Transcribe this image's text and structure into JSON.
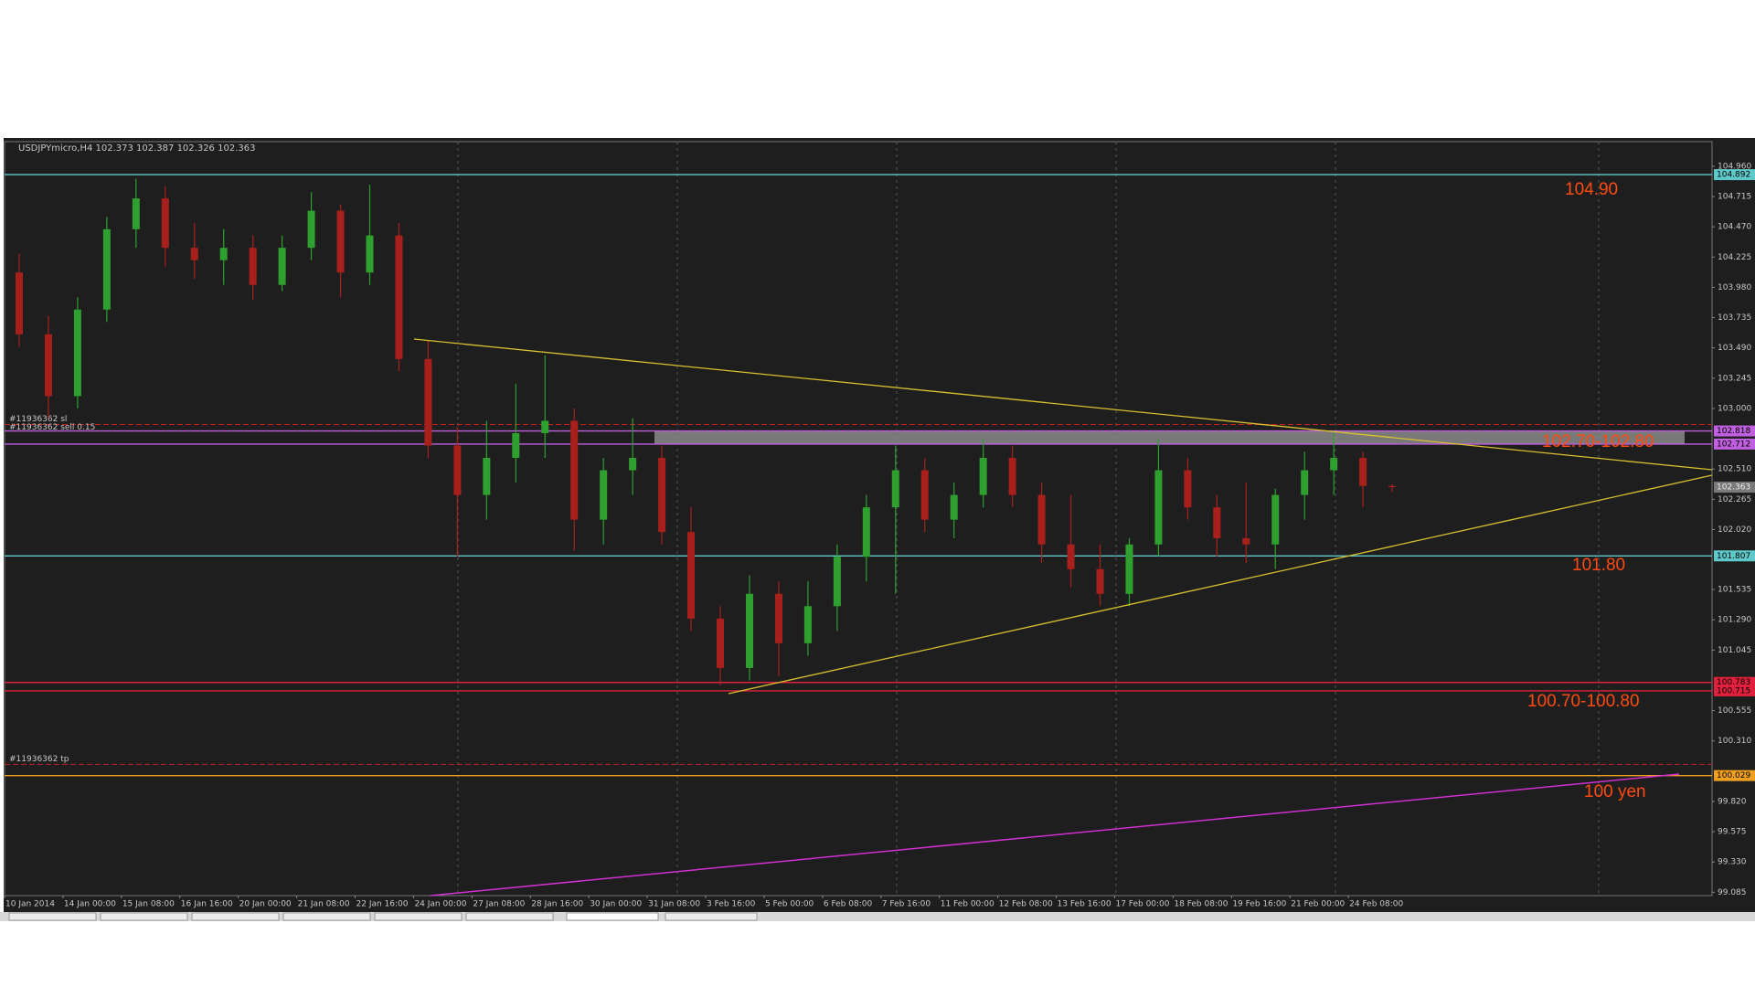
{
  "chart_data": {
    "type": "candlestick",
    "title": "USDJPYmicro,H4  102.373 102.387 102.326 102.363",
    "categories": [
      "10 Jan 2014",
      null,
      "14 Jan 00:00",
      null,
      "15 Jan 08:00",
      null,
      "16 Jan 16:00",
      null,
      "20 Jan 00:00",
      null,
      "21 Jan 08:00",
      null,
      "22 Jan 16:00",
      null,
      "24 Jan 00:00",
      null,
      "27 Jan 08:00",
      null,
      "28 Jan 16:00",
      null,
      "30 Jan 00:00",
      null,
      "31 Jan 08:00",
      null,
      "3 Feb 16:00",
      null,
      "5 Feb 00:00",
      null,
      "6 Feb 08:00",
      null,
      "7 Feb 16:00",
      null,
      "11 Feb 00:00",
      null,
      "12 Feb 08:00",
      null,
      "13 Feb 16:00",
      null,
      "17 Feb 00:00",
      null,
      "18 Feb 08:00",
      null,
      "19 Feb 16:00",
      null,
      "21 Feb 00:00",
      null,
      "24 Feb 08:00",
      null
    ],
    "open": [
      104.1,
      103.6,
      103.1,
      103.8,
      104.45,
      104.7,
      104.3,
      104.2,
      104.3,
      104.0,
      104.3,
      104.6,
      104.1,
      104.4,
      103.4,
      102.7,
      102.3,
      102.6,
      102.8,
      102.9,
      102.1,
      102.5,
      102.6,
      102.0,
      101.3,
      100.9,
      101.5,
      101.1,
      101.4,
      101.8,
      102.2,
      102.5,
      102.1,
      102.3,
      102.6,
      102.3,
      101.9,
      101.7,
      101.5,
      101.9,
      102.5,
      102.2,
      101.95,
      101.9,
      102.3,
      102.5,
      102.6,
      102.373
    ],
    "high": [
      104.25,
      103.75,
      103.9,
      104.55,
      104.86,
      104.8,
      104.5,
      104.45,
      104.4,
      104.4,
      104.75,
      104.65,
      104.81,
      104.5,
      103.55,
      102.85,
      102.9,
      103.2,
      103.43,
      103.0,
      102.6,
      102.92,
      102.7,
      102.2,
      101.4,
      101.65,
      101.6,
      101.6,
      101.9,
      102.3,
      102.7,
      102.6,
      102.4,
      102.75,
      102.7,
      102.4,
      102.3,
      101.9,
      101.95,
      102.75,
      102.6,
      102.3,
      102.4,
      102.35,
      102.65,
      102.8,
      102.65,
      102.387
    ],
    "low": [
      103.5,
      102.92,
      103.0,
      103.7,
      104.3,
      104.15,
      104.05,
      104.0,
      103.88,
      103.95,
      104.2,
      103.9,
      104.0,
      103.3,
      102.6,
      101.8,
      102.1,
      102.4,
      102.6,
      101.85,
      101.9,
      102.3,
      101.9,
      101.2,
      100.76,
      100.8,
      100.83,
      101.0,
      101.2,
      101.6,
      101.5,
      102.0,
      101.95,
      102.2,
      102.2,
      101.75,
      101.55,
      101.4,
      101.4,
      101.8,
      102.1,
      101.8,
      101.75,
      101.7,
      102.1,
      102.3,
      102.2,
      102.326
    ],
    "close": [
      103.6,
      103.1,
      103.8,
      104.45,
      104.7,
      104.3,
      104.2,
      104.3,
      104.0,
      104.3,
      104.6,
      104.1,
      104.4,
      103.4,
      102.7,
      102.3,
      102.6,
      102.8,
      102.9,
      102.1,
      102.5,
      102.6,
      102.0,
      101.3,
      100.9,
      101.5,
      101.1,
      101.4,
      101.8,
      102.2,
      102.5,
      102.1,
      102.3,
      102.6,
      102.3,
      101.9,
      101.7,
      101.5,
      101.9,
      102.5,
      102.2,
      101.95,
      101.9,
      102.3,
      102.5,
      102.6,
      102.373,
      102.363
    ],
    "up_color": "#2fa02f",
    "down_color": "#a8201c",
    "ylim": [
      99.058,
      105.159
    ],
    "yticks": [
      {
        "value": 104.96,
        "label": "104.960"
      },
      104.715,
      {
        "value": 104.47,
        "label": "104.470"
      },
      104.225,
      {
        "value": 103.98,
        "label": "103.980"
      },
      103.735,
      {
        "value": 103.49,
        "label": "103.490"
      },
      103.245,
      {
        "value": 103.0,
        "label": "103.000"
      },
      {
        "value": 102.51,
        "label": "102.510"
      },
      102.265,
      {
        "value": 102.02,
        "label": "102.020"
      },
      101.535,
      {
        "value": 101.29,
        "label": "101.290"
      },
      101.045,
      100.555,
      {
        "value": 100.31,
        "label": "100.310"
      },
      {
        "value": 99.82,
        "label": "99.820"
      },
      99.575,
      {
        "value": 99.33,
        "label": "99.330"
      },
      99.085
    ],
    "levels": [
      {
        "value": 104.892,
        "color": "#5fc8c8"
      },
      {
        "value": 102.818,
        "color": "#c060e0",
        "name": "#11936362 sell 0.15"
      },
      {
        "value": 102.712,
        "color": "#c060e0"
      },
      {
        "value": 101.807,
        "color": "#5fc8c8"
      },
      {
        "value": 100.783,
        "color": "#e0203c"
      },
      {
        "value": 100.715,
        "color": "#e0203c"
      },
      {
        "value": 100.029,
        "color": "#f0a020"
      }
    ],
    "orders": [
      {
        "name": "#11936362 sl",
        "value": 102.87
      },
      {
        "name": "#11936362 tp",
        "value": 100.12
      }
    ],
    "order_color": "#c02020",
    "price": 102.363,
    "annotations": [
      "104.90",
      "102.70-102.80",
      "101.80",
      "100.70-100.80",
      "100 yen"
    ]
  }
}
